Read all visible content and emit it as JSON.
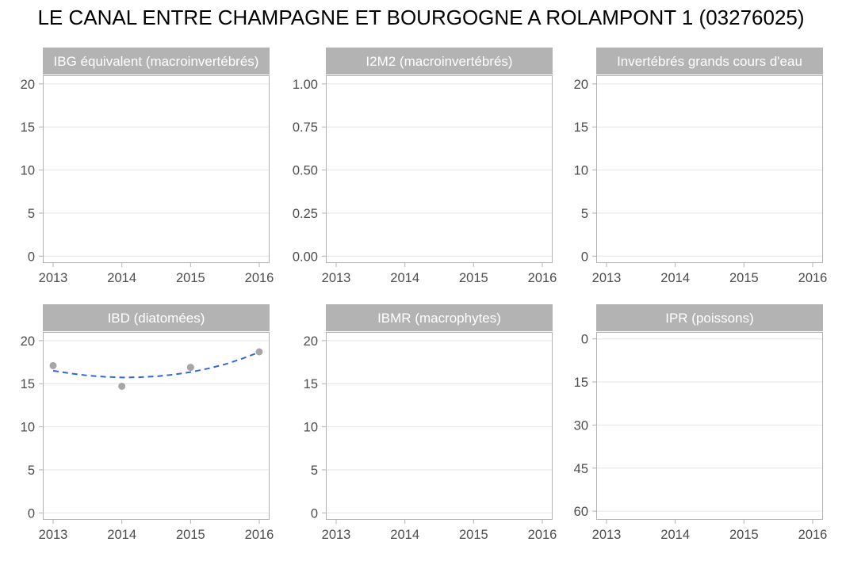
{
  "figure": {
    "title": "LE CANAL ENTRE CHAMPAGNE ET BOURGOGNE A ROLAMPONT 1 (03276025)"
  },
  "chart_data": [
    {
      "type": "scatter",
      "title": "IBG équivalent (macroinvertébrés)",
      "x_ticks": [
        "2013",
        "2014",
        "2015",
        "2016"
      ],
      "xlim": [
        2012.85,
        2016.15
      ],
      "y_ticks": [
        "0",
        "5",
        "10",
        "15",
        "20"
      ],
      "ylim": [
        -0.8,
        21.0
      ],
      "y_reversed": false,
      "grid": true,
      "points": [],
      "trend": []
    },
    {
      "type": "scatter",
      "title": "I2M2 (macroinvertébrés)",
      "x_ticks": [
        "2013",
        "2014",
        "2015",
        "2016"
      ],
      "xlim": [
        2012.85,
        2016.15
      ],
      "y_ticks": [
        "0.00",
        "0.25",
        "0.50",
        "0.75",
        "1.00"
      ],
      "ylim": [
        -0.04,
        1.05
      ],
      "y_reversed": false,
      "grid": true,
      "points": [],
      "trend": []
    },
    {
      "type": "scatter",
      "title": "Invertébrés grands cours d'eau",
      "x_ticks": [
        "2013",
        "2014",
        "2015",
        "2016"
      ],
      "xlim": [
        2012.85,
        2016.15
      ],
      "y_ticks": [
        "0",
        "5",
        "10",
        "15",
        "20"
      ],
      "ylim": [
        -0.8,
        21.0
      ],
      "y_reversed": false,
      "grid": true,
      "points": [],
      "trend": []
    },
    {
      "type": "scatter",
      "title": "IBD (diatomées)",
      "x_ticks": [
        "2013",
        "2014",
        "2015",
        "2016"
      ],
      "xlim": [
        2012.85,
        2016.15
      ],
      "y_ticks": [
        "0",
        "5",
        "10",
        "15",
        "20"
      ],
      "ylim": [
        -0.8,
        21.0
      ],
      "y_reversed": false,
      "grid": true,
      "points": [
        {
          "x": 2013,
          "y": 17.1
        },
        {
          "x": 2014,
          "y": 14.7
        },
        {
          "x": 2015,
          "y": 16.9
        },
        {
          "x": 2016,
          "y": 18.7
        }
      ],
      "trend": [
        {
          "x": 2013.0,
          "y": 16.5
        },
        {
          "x": 2013.25,
          "y": 16.2
        },
        {
          "x": 2013.5,
          "y": 15.95
        },
        {
          "x": 2013.75,
          "y": 15.8
        },
        {
          "x": 2014.0,
          "y": 15.72
        },
        {
          "x": 2014.25,
          "y": 15.75
        },
        {
          "x": 2014.5,
          "y": 15.85
        },
        {
          "x": 2014.75,
          "y": 16.05
        },
        {
          "x": 2015.0,
          "y": 16.35
        },
        {
          "x": 2015.25,
          "y": 16.75
        },
        {
          "x": 2015.5,
          "y": 17.25
        },
        {
          "x": 2015.75,
          "y": 17.9
        },
        {
          "x": 2016.0,
          "y": 18.65
        }
      ],
      "point_color": "#a6a6a6",
      "trend_color": "#3366e6"
    },
    {
      "type": "scatter",
      "title": "IBMR (macrophytes)",
      "x_ticks": [
        "2013",
        "2014",
        "2015",
        "2016"
      ],
      "xlim": [
        2012.85,
        2016.15
      ],
      "y_ticks": [
        "0",
        "5",
        "10",
        "15",
        "20"
      ],
      "ylim": [
        -0.8,
        21.0
      ],
      "y_reversed": false,
      "grid": true,
      "points": [],
      "trend": []
    },
    {
      "type": "scatter",
      "title": "IPR (poissons)",
      "x_ticks": [
        "2013",
        "2014",
        "2015",
        "2016"
      ],
      "xlim": [
        2012.85,
        2016.15
      ],
      "y_ticks": [
        "0",
        "15",
        "30",
        "45",
        "60"
      ],
      "ylim": [
        -2.4,
        63.0
      ],
      "y_reversed": true,
      "grid": true,
      "points": [],
      "trend": []
    }
  ],
  "style": {
    "strip_fill": "#b3b3b3",
    "strip_text_color": "#ffffff",
    "panel_border": "#b3b3b3",
    "grid_color": "#e6e6e6",
    "tick_color": "#b3b3b3",
    "tick_label_color": "#4d4d4d"
  }
}
